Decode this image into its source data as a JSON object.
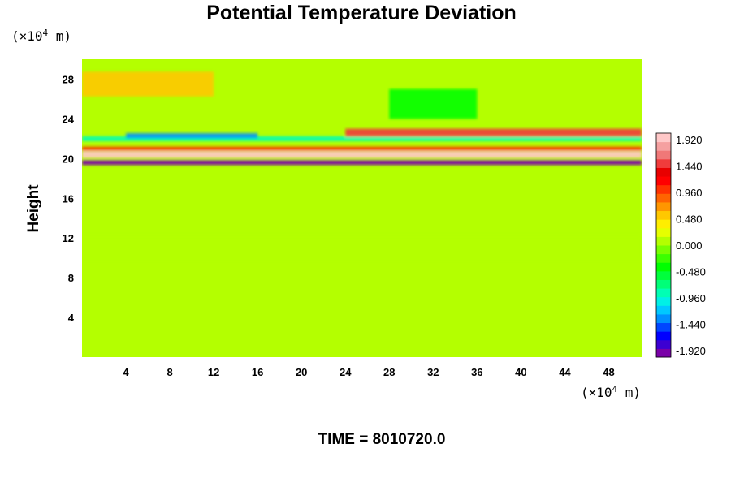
{
  "title": "Potential Temperature Deviation",
  "y_unit": {
    "prefix": "(×10",
    "exp": "4",
    "suffix": " m)"
  },
  "x_unit": {
    "prefix": "(×10",
    "exp": "4",
    "suffix": " m)"
  },
  "ylabel": "Height",
  "footer": "TIME = 8010720.0",
  "chart_data": {
    "type": "heatmap",
    "title": "Potential Temperature Deviation",
    "xlabel": "",
    "ylabel": "Height",
    "xlim": [
      0,
      51
    ],
    "ylim": [
      0,
      30
    ],
    "x_ticks": [
      4,
      8,
      12,
      16,
      20,
      24,
      28,
      32,
      36,
      40,
      44,
      48
    ],
    "y_ticks": [
      4,
      8,
      12,
      16,
      20,
      24,
      28
    ],
    "color_scale": {
      "min": -2.04,
      "max": 2.04,
      "step": 0.12,
      "tick_values": [
        1.92,
        1.44,
        0.96,
        0.48,
        0.0,
        -0.48,
        -0.96,
        -1.44,
        -1.92
      ],
      "tick_labels": [
        "1.920",
        "1.440",
        "0.960",
        "0.480",
        "0.000",
        "-0.480",
        "-0.960",
        "-1.440",
        "-1.920"
      ],
      "colors": [
        "#7a00a8",
        "#3c00d2",
        "#0000ff",
        "#0046ff",
        "#0090ff",
        "#00c8ff",
        "#00f0e6",
        "#00ffb4",
        "#00ff78",
        "#00ff3c",
        "#00ff00",
        "#3cff00",
        "#78ff00",
        "#b4ff00",
        "#e6ff00",
        "#ffee00",
        "#ffc800",
        "#ff9600",
        "#ff6400",
        "#ff3200",
        "#ff0000",
        "#e80000",
        "#f03c3c",
        "#f07878",
        "#f5a0a0",
        "#ffc8c8"
      ]
    },
    "features": [
      {
        "x_range": [
          0,
          51
        ],
        "y_center": 20.4,
        "thickness": 0.7,
        "value": 2.0
      },
      {
        "x_range": [
          0,
          51
        ],
        "y_center": 19.6,
        "thickness": 0.5,
        "value": -1.9
      },
      {
        "x_range": [
          0,
          51
        ],
        "y_center": 21.0,
        "thickness": 0.4,
        "value": 1.0
      },
      {
        "x_range": [
          0,
          51
        ],
        "y_center": 22.0,
        "thickness": 0.5,
        "value": -0.8
      },
      {
        "x_range": [
          24,
          51
        ],
        "y_center": 22.6,
        "thickness": 0.8,
        "value": 1.5
      },
      {
        "x_range": [
          4,
          16
        ],
        "y_center": 22.3,
        "thickness": 0.5,
        "value": -1.3
      },
      {
        "x_range": [
          28,
          36
        ],
        "y_center": 25.5,
        "thickness": 3.0,
        "value": -0.4
      },
      {
        "x_range": [
          0,
          12
        ],
        "y_center": 27.5,
        "thickness": 2.5,
        "value": 0.5
      },
      {
        "x_range": [
          0,
          51
        ],
        "y_center": 11.0,
        "thickness": 2.5,
        "value": 0.15
      }
    ]
  }
}
